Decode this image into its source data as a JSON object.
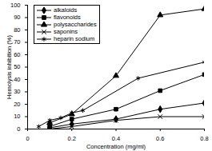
{
  "chart_data": {
    "type": "line",
    "xlabel": "Concentration (mg/ml)",
    "ylabel": "Hemolysis inhibition (%)",
    "xlim": [
      0,
      0.8
    ],
    "xticks": [
      0,
      0.2,
      0.4,
      0.6,
      0.8
    ],
    "ylim": [
      0,
      100
    ],
    "yticks": [
      0,
      10,
      20,
      30,
      40,
      50,
      60,
      70,
      80,
      90,
      100
    ],
    "grid": false,
    "legend": "upper left",
    "series": [
      {
        "name": "alkaloids",
        "color": "#000000",
        "marker": "diamond",
        "x": [
          0.1,
          0.2,
          0.4,
          0.6,
          0.8
        ],
        "values": [
          1,
          4,
          8,
          16,
          21
        ]
      },
      {
        "name": "flavonoids",
        "color": "#000000",
        "marker": "square",
        "x": [
          0.1,
          0.2,
          0.4,
          0.6,
          0.8
        ],
        "values": [
          2,
          8,
          16,
          31,
          44
        ]
      },
      {
        "name": "polysaccharides",
        "color": "#000000",
        "marker": "triangle",
        "x": [
          0.1,
          0.2,
          0.4,
          0.6,
          0.8
        ],
        "values": [
          5,
          12,
          43,
          92,
          97
        ]
      },
      {
        "name": "saponins",
        "color": "#000000",
        "marker": "times",
        "x": [
          0.1,
          0.2,
          0.4,
          0.6,
          0.8
        ],
        "values": [
          0,
          2,
          7,
          10,
          10
        ]
      },
      {
        "name": "heparin sodium",
        "color": "#000000",
        "marker": "asterisk",
        "x": [
          0.05,
          0.1,
          0.15,
          0.2,
          0.25,
          0.5,
          0.8
        ],
        "values": [
          2,
          7,
          9,
          13,
          15,
          41,
          54
        ]
      }
    ]
  }
}
